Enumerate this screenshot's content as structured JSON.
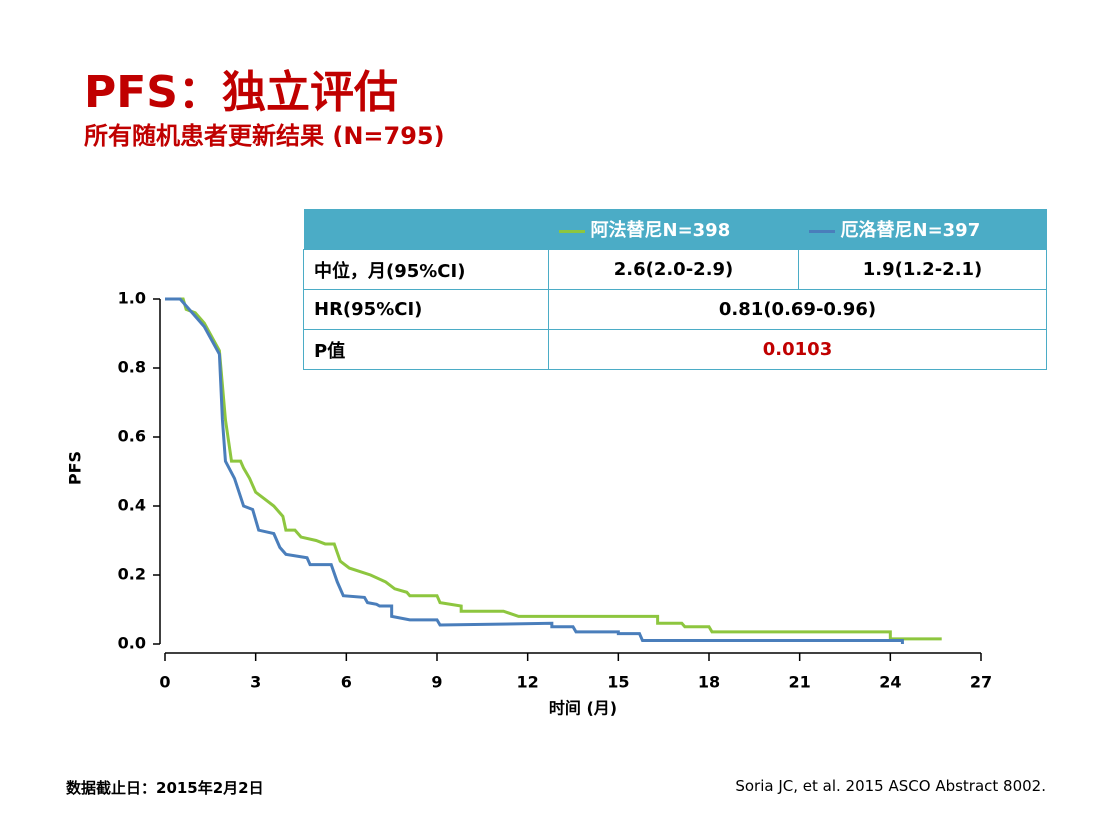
{
  "header": {
    "title": "PFS：独立评估",
    "subtitle": "所有随机患者更新结果 (N=795)"
  },
  "table": {
    "rows": [
      [
        "中位，月(95%CI)",
        "2.6(2.0-2.9)",
        "1.9(1.2-2.1)"
      ],
      [
        "HR(95%CI)",
        "0.81(0.69-0.96)"
      ],
      [
        "P值",
        "0.0103"
      ]
    ]
  },
  "footer": {
    "left": "数据截止日：2015年2月2日",
    "right": "Soria JC, et al. 2015 ASCO Abstract 8002."
  },
  "chart_data": {
    "type": "line",
    "x_label": "时间 (月)",
    "y_label": "PFS",
    "xlim": [
      0,
      27
    ],
    "xticks": [
      0,
      3,
      6,
      9,
      12,
      15,
      18,
      21,
      24,
      27
    ],
    "ylim": [
      0,
      1
    ],
    "yticks": [
      {
        "value": 0,
        "label": "0.0"
      },
      0.2,
      0.4,
      0.6,
      0.8,
      {
        "value": 1,
        "label": "1.0"
      }
    ],
    "grid": false,
    "series": [
      {
        "name": "阿法替尼N=398",
        "color": "#8dc63f",
        "x": [
          0,
          0.6,
          0.7,
          1.0,
          1.3,
          1.8,
          2.0,
          2.2,
          2.5,
          2.6,
          2.8,
          3.0,
          3.3,
          3.6,
          3.9,
          4.0,
          4.3,
          4.5,
          5.0,
          5.3,
          5.6,
          5.8,
          6.1,
          6.8,
          7.3,
          7.6,
          8.0,
          8.1,
          9.0,
          9.1,
          9.8,
          9.8,
          11.2,
          11.7,
          16.3,
          16.3,
          17.1,
          17.2,
          18.0,
          18.1,
          24.0,
          24.0,
          25.7
        ],
        "values": [
          1.0,
          1.0,
          0.97,
          0.96,
          0.93,
          0.85,
          0.65,
          0.53,
          0.53,
          0.51,
          0.48,
          0.44,
          0.42,
          0.4,
          0.37,
          0.33,
          0.33,
          0.31,
          0.3,
          0.29,
          0.29,
          0.24,
          0.22,
          0.2,
          0.18,
          0.16,
          0.15,
          0.14,
          0.14,
          0.12,
          0.11,
          0.095,
          0.095,
          0.08,
          0.08,
          0.06,
          0.06,
          0.05,
          0.05,
          0.035,
          0.035,
          0.015,
          0.015
        ]
      },
      {
        "name": "厄洛替尼N=397",
        "color": "#4a7ebb",
        "x": [
          0,
          0.5,
          0.9,
          1.3,
          1.8,
          1.9,
          2.0,
          2.3,
          2.6,
          2.9,
          3.1,
          3.6,
          3.8,
          4.0,
          4.7,
          4.8,
          5.5,
          5.7,
          5.9,
          6.6,
          6.7,
          7.0,
          7.1,
          7.5,
          7.5,
          8.1,
          9.0,
          9.1,
          12.8,
          12.8,
          13.5,
          13.6,
          15.0,
          15.0,
          15.7,
          15.8,
          24.4,
          24.4
        ],
        "values": [
          1.0,
          1.0,
          0.96,
          0.92,
          0.84,
          0.65,
          0.53,
          0.48,
          0.4,
          0.39,
          0.33,
          0.32,
          0.28,
          0.26,
          0.25,
          0.23,
          0.23,
          0.18,
          0.14,
          0.135,
          0.12,
          0.115,
          0.11,
          0.11,
          0.08,
          0.07,
          0.07,
          0.055,
          0.06,
          0.05,
          0.05,
          0.035,
          0.035,
          0.03,
          0.03,
          0.01,
          0.01,
          0.0
        ]
      }
    ]
  }
}
